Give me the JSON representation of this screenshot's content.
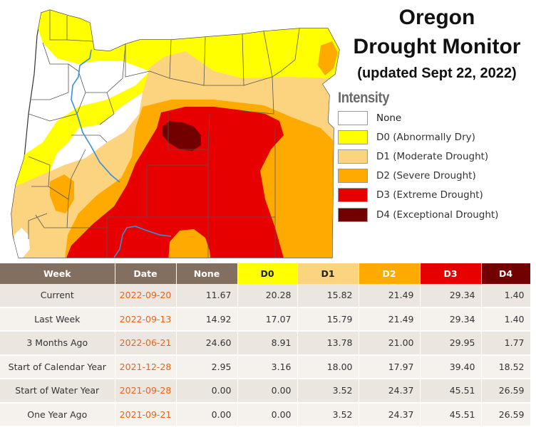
{
  "title": {
    "line1": "Oregon",
    "line2": "Drought Monitor",
    "line3": "(updated Sept 22, 2022)"
  },
  "legend": {
    "title": "Intensity",
    "items": [
      {
        "code": "none",
        "label": "None",
        "color": "#ffffff"
      },
      {
        "code": "D0",
        "label": "D0 (Abnormally Dry)",
        "color": "#ffff00"
      },
      {
        "code": "D1",
        "label": "D1 (Moderate Drought)",
        "color": "#fcd37f"
      },
      {
        "code": "D2",
        "label": "D2 (Severe Drought)",
        "color": "#ffaa00"
      },
      {
        "code": "D3",
        "label": "D3 (Extreme Drought)",
        "color": "#e60000"
      },
      {
        "code": "D4",
        "label": "D4 (Exceptional Drought)",
        "color": "#730000"
      }
    ]
  },
  "table": {
    "headers": [
      "Week",
      "Date",
      "None",
      "D0",
      "D1",
      "D2",
      "D3",
      "D4"
    ],
    "header_colors": [
      "#826f60",
      "#826f60",
      "#826f60",
      "#ffff00",
      "#fcd37f",
      "#ffaa00",
      "#e60000",
      "#730000"
    ],
    "header_text_colors": [
      "#ffffff",
      "#ffffff",
      "#ffffff",
      "#222222",
      "#222222",
      "#ffffff",
      "#ffffff",
      "#ffffff"
    ],
    "rows": [
      {
        "week": "Current",
        "date": "2022-09-20",
        "values": [
          "11.67",
          "20.28",
          "15.82",
          "21.49",
          "29.34",
          "1.40"
        ]
      },
      {
        "week": "Last Week",
        "date": "2022-09-13",
        "values": [
          "14.92",
          "17.07",
          "15.79",
          "21.49",
          "29.34",
          "1.40"
        ]
      },
      {
        "week": "3 Months Ago",
        "date": "2022-06-21",
        "values": [
          "24.60",
          "8.91",
          "13.78",
          "21.00",
          "29.95",
          "1.77"
        ]
      },
      {
        "week": "Start of Calendar Year",
        "date": "2021-12-28",
        "values": [
          "2.95",
          "3.16",
          "18.00",
          "17.97",
          "39.40",
          "18.52"
        ]
      },
      {
        "week": "Start of Water Year",
        "date": "2021-09-28",
        "values": [
          "0.00",
          "0.00",
          "3.52",
          "24.37",
          "45.51",
          "26.59"
        ]
      },
      {
        "week": "One Year Ago",
        "date": "2021-09-21",
        "values": [
          "0.00",
          "0.00",
          "3.52",
          "24.37",
          "45.51",
          "26.59"
        ]
      }
    ]
  },
  "map": {
    "state": "Oregon",
    "colors": {
      "none": "#ffffff",
      "D0": "#ffff00",
      "D1": "#fcd37f",
      "D2": "#ffaa00",
      "D3": "#e60000",
      "D4": "#730000",
      "county_border": "#555555",
      "river": "#3a8fd6"
    }
  }
}
